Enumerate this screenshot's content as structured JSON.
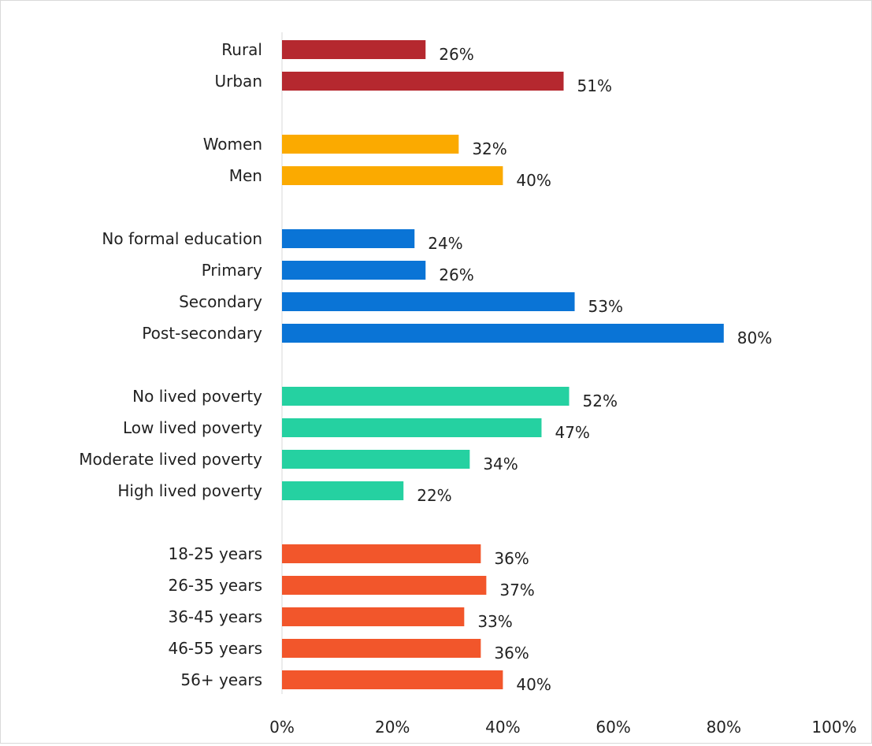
{
  "chart_data": {
    "type": "bar",
    "orientation": "horizontal",
    "title": "",
    "xlabel": "",
    "ylabel": "",
    "xlim": [
      0,
      100
    ],
    "x_ticks": [
      "0%",
      "20%",
      "40%",
      "60%",
      "80%",
      "100%"
    ],
    "grid": false,
    "legend": "none",
    "groups": [
      {
        "color": "#b5282f",
        "categories": [
          "Rural",
          "Urban"
        ],
        "values": [
          26,
          51
        ],
        "labels": [
          "26%",
          "51%"
        ]
      },
      {
        "color": "#fbaa00",
        "categories": [
          "Women",
          "Men"
        ],
        "values": [
          32,
          40
        ],
        "labels": [
          "32%",
          "40%"
        ]
      },
      {
        "color": "#0a74d6",
        "categories": [
          "No formal education",
          "Primary",
          "Secondary",
          "Post-secondary"
        ],
        "values": [
          24,
          26,
          53,
          80
        ],
        "labels": [
          "24%",
          "26%",
          "53%",
          "80%"
        ]
      },
      {
        "color": "#25d1a1",
        "categories": [
          "No lived poverty",
          "Low lived poverty",
          "Moderate lived poverty",
          "High lived poverty"
        ],
        "values": [
          52,
          47,
          34,
          22
        ],
        "labels": [
          "52%",
          "47%",
          "34%",
          "22%"
        ]
      },
      {
        "color": "#f2562b",
        "categories": [
          "18-25 years",
          "26-35 years",
          "36-45 years",
          "46-55 years",
          "56+ years"
        ],
        "values": [
          36,
          37,
          33,
          36,
          40
        ],
        "labels": [
          "36%",
          "37%",
          "33%",
          "36%",
          "40%"
        ]
      }
    ]
  }
}
